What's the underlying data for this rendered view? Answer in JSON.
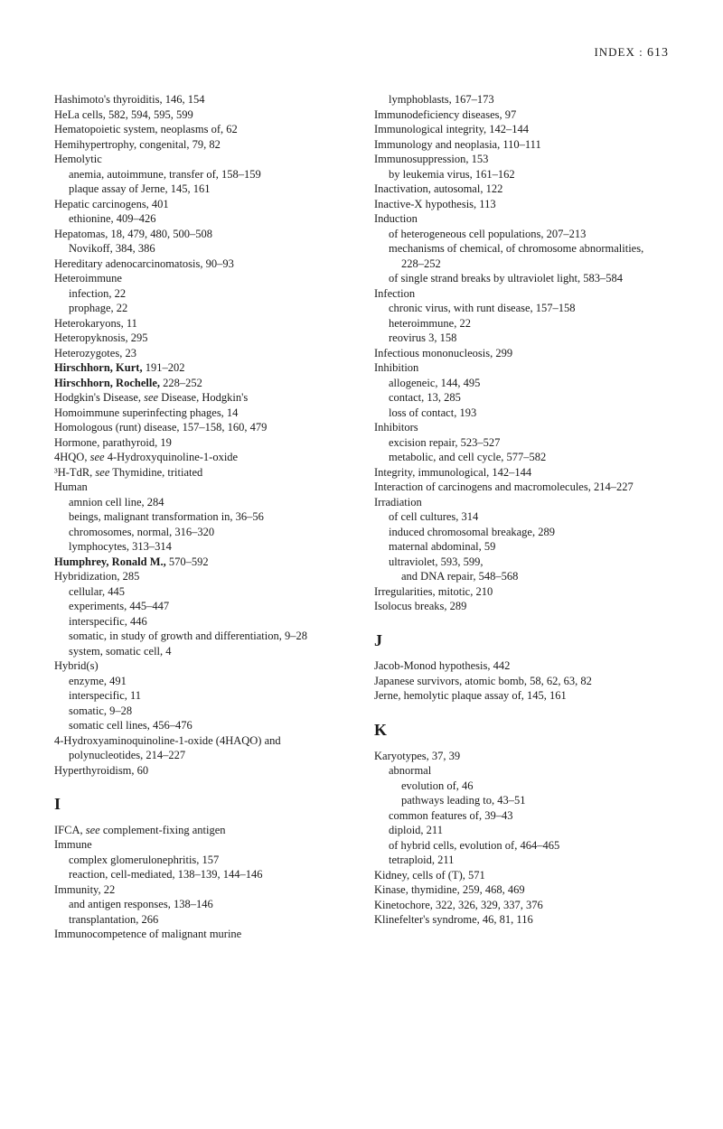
{
  "header": {
    "label": "INDEX  :",
    "pageNum": "613"
  },
  "left": [
    {
      "t": "Hashimoto's thyroiditis, 146, 154",
      "c": ""
    },
    {
      "t": "HeLa cells, 582, 594, 595, 599",
      "c": ""
    },
    {
      "t": "Hematopoietic system, neoplasms of, 62",
      "c": ""
    },
    {
      "t": "Hemihypertrophy, congenital, 79, 82",
      "c": ""
    },
    {
      "t": "Hemolytic",
      "c": ""
    },
    {
      "t": "anemia, autoimmune, transfer of, 158–159",
      "c": "sub1"
    },
    {
      "t": "plaque assay of Jerne, 145, 161",
      "c": "sub1"
    },
    {
      "t": "Hepatic carcinogens, 401",
      "c": ""
    },
    {
      "t": "ethionine, 409–426",
      "c": "sub1"
    },
    {
      "t": "Hepatomas, 18, 479, 480, 500–508",
      "c": ""
    },
    {
      "t": "Novikoff, 384, 386",
      "c": "sub1"
    },
    {
      "t": "Hereditary adenocarcinomatosis, 90–93",
      "c": ""
    },
    {
      "t": "Heteroimmune",
      "c": ""
    },
    {
      "t": "infection, 22",
      "c": "sub1"
    },
    {
      "t": "prophage, 22",
      "c": "sub1"
    },
    {
      "t": "Heterokaryons, 11",
      "c": ""
    },
    {
      "t": "Heteropyknosis, 295",
      "c": ""
    },
    {
      "t": "Heterozygotes, 23",
      "c": ""
    },
    {
      "t": "<b>Hirschhorn, Kurt,</b> 191–202",
      "c": ""
    },
    {
      "t": "<b>Hirschhorn, Rochelle,</b> 228–252",
      "c": ""
    },
    {
      "t": "Hodgkin's Disease, <i>see</i> Disease, Hodgkin's",
      "c": ""
    },
    {
      "t": "Homoimmune superinfecting phages, 14",
      "c": ""
    },
    {
      "t": "Homologous (runt) disease, 157–158, 160, 479",
      "c": ""
    },
    {
      "t": "Hormone, parathyroid, 19",
      "c": ""
    },
    {
      "t": "4HQO, <i>see</i> 4-Hydroxyquinoline-1-oxide",
      "c": ""
    },
    {
      "t": "³H-TdR, <i>see</i> Thymidine, tritiated",
      "c": ""
    },
    {
      "t": "Human",
      "c": ""
    },
    {
      "t": "amnion cell line, 284",
      "c": "sub1"
    },
    {
      "t": "beings, malignant transformation in, 36–56",
      "c": "sub1"
    },
    {
      "t": "chromosomes, normal, 316–320",
      "c": "sub1"
    },
    {
      "t": "lymphocytes, 313–314",
      "c": "sub1"
    },
    {
      "t": "<b>Humphrey, Ronald M.,</b> 570–592",
      "c": ""
    },
    {
      "t": "Hybridization, 285",
      "c": ""
    },
    {
      "t": "cellular, 445",
      "c": "sub1"
    },
    {
      "t": "experiments, 445–447",
      "c": "sub1"
    },
    {
      "t": "interspecific, 446",
      "c": "sub1"
    },
    {
      "t": "somatic, in study of growth and differentiation, 9–28",
      "c": "sub1"
    },
    {
      "t": "system, somatic cell, 4",
      "c": "sub1"
    },
    {
      "t": "Hybrid(s)",
      "c": ""
    },
    {
      "t": "enzyme, 491",
      "c": "sub1"
    },
    {
      "t": "interspecific, 11",
      "c": "sub1"
    },
    {
      "t": "somatic, 9–28",
      "c": "sub1"
    },
    {
      "t": "somatic cell lines, 456–476",
      "c": "sub1"
    },
    {
      "t": "4-Hydroxyaminoquinoline-1-oxide (4HAQO) and polynucleotides, 214–227",
      "c": ""
    },
    {
      "t": "Hyperthyroidism, 60",
      "c": ""
    },
    {
      "t": "I",
      "c": "section-letter"
    },
    {
      "t": "IFCA, <i>see</i> complement-fixing antigen",
      "c": ""
    },
    {
      "t": "Immune",
      "c": ""
    },
    {
      "t": "complex glomerulonephritis, 157",
      "c": "sub1"
    },
    {
      "t": "reaction, cell-mediated, 138–139, 144–146",
      "c": "sub1"
    },
    {
      "t": "Immunity, 22",
      "c": ""
    },
    {
      "t": "and antigen responses, 138–146",
      "c": "sub1"
    },
    {
      "t": "transplantation, 266",
      "c": "sub1"
    },
    {
      "t": "Immunocompetence of malignant murine",
      "c": ""
    }
  ],
  "right": [
    {
      "t": "lymphoblasts, 167–173",
      "c": "sub1"
    },
    {
      "t": "Immunodeficiency diseases, 97",
      "c": ""
    },
    {
      "t": "Immunological integrity, 142–144",
      "c": ""
    },
    {
      "t": "Immunology and neoplasia, 110–111",
      "c": ""
    },
    {
      "t": "Immunosuppression, 153",
      "c": ""
    },
    {
      "t": "by leukemia virus, 161–162",
      "c": "sub1"
    },
    {
      "t": "Inactivation, autosomal, 122",
      "c": ""
    },
    {
      "t": "Inactive-X hypothesis, 113",
      "c": ""
    },
    {
      "t": "Induction",
      "c": ""
    },
    {
      "t": "of heterogeneous cell populations, 207–213",
      "c": "sub1"
    },
    {
      "t": "mechanisms of chemical, of chromosome abnormalities, 228–252",
      "c": "sub1"
    },
    {
      "t": "of single strand breaks by ultraviolet light, 583–584",
      "c": "sub1"
    },
    {
      "t": "Infection",
      "c": ""
    },
    {
      "t": "chronic virus, with runt disease, 157–158",
      "c": "sub1"
    },
    {
      "t": "heteroimmune, 22",
      "c": "sub1"
    },
    {
      "t": "reovirus 3, 158",
      "c": "sub1"
    },
    {
      "t": "Infectious mononucleosis, 299",
      "c": ""
    },
    {
      "t": "Inhibition",
      "c": ""
    },
    {
      "t": "allogeneic, 144, 495",
      "c": "sub1"
    },
    {
      "t": "contact, 13, 285",
      "c": "sub1"
    },
    {
      "t": "loss of contact, 193",
      "c": "sub1"
    },
    {
      "t": "Inhibitors",
      "c": ""
    },
    {
      "t": "excision repair, 523–527",
      "c": "sub1"
    },
    {
      "t": "metabolic, and cell cycle, 577–582",
      "c": "sub1"
    },
    {
      "t": "Integrity, immunological, 142–144",
      "c": ""
    },
    {
      "t": "Interaction of carcinogens and macromolecules, 214–227",
      "c": ""
    },
    {
      "t": "Irradiation",
      "c": ""
    },
    {
      "t": "of cell cultures, 314",
      "c": "sub1"
    },
    {
      "t": "induced chromosomal breakage, 289",
      "c": "sub1"
    },
    {
      "t": "maternal abdominal, 59",
      "c": "sub1"
    },
    {
      "t": "ultraviolet, 593, 599,",
      "c": "sub1"
    },
    {
      "t": "and DNA repair, 548–568",
      "c": "sub2"
    },
    {
      "t": "Irregularities, mitotic, 210",
      "c": ""
    },
    {
      "t": "Isolocus breaks, 289",
      "c": ""
    },
    {
      "t": "J",
      "c": "section-letter"
    },
    {
      "t": "Jacob-Monod hypothesis, 442",
      "c": ""
    },
    {
      "t": "Japanese survivors, atomic bomb, 58, 62, 63, 82",
      "c": ""
    },
    {
      "t": "Jerne, hemolytic plaque assay of, 145, 161",
      "c": ""
    },
    {
      "t": "K",
      "c": "section-letter"
    },
    {
      "t": "Karyotypes, 37, 39",
      "c": ""
    },
    {
      "t": "abnormal",
      "c": "sub1"
    },
    {
      "t": "evolution of, 46",
      "c": "sub2"
    },
    {
      "t": "pathways leading to, 43–51",
      "c": "sub2"
    },
    {
      "t": "common features of, 39–43",
      "c": "sub1"
    },
    {
      "t": "diploid, 211",
      "c": "sub1"
    },
    {
      "t": "of hybrid cells, evolution of, 464–465",
      "c": "sub1"
    },
    {
      "t": "tetraploid, 211",
      "c": "sub1"
    },
    {
      "t": "Kidney, cells of (T), 571",
      "c": ""
    },
    {
      "t": "Kinase, thymidine, 259, 468, 469",
      "c": ""
    },
    {
      "t": "Kinetochore, 322, 326, 329, 337, 376",
      "c": ""
    },
    {
      "t": "Klinefelter's syndrome, 46, 81, 116",
      "c": ""
    }
  ]
}
